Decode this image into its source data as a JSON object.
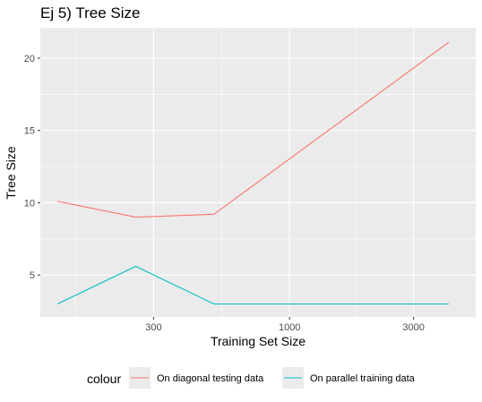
{
  "chart_data": {
    "type": "line",
    "title": "Ej 5) Tree Size",
    "xlabel": "Training Set Size",
    "ylabel": "Tree Size",
    "x_scale": "log10",
    "xlim": [
      110,
      5200
    ],
    "ylim": [
      2.1,
      22.1
    ],
    "x_ticks": [
      300,
      1000,
      3000
    ],
    "x_tick_labels": [
      "300",
      "1000",
      "3000"
    ],
    "x_minor_ticks": [
      150,
      550,
      1800
    ],
    "y_ticks": [
      5,
      10,
      15,
      20
    ],
    "y_tick_labels": [
      "5",
      "10",
      "15",
      "20"
    ],
    "y_minor_ticks": [
      7.5,
      12.5,
      17.5
    ],
    "grid": true,
    "legend": {
      "title": "colour",
      "position": "bottom"
    },
    "x": [
      128,
      256,
      512,
      4096
    ],
    "series": [
      {
        "name": "On diagonal testing data",
        "color": "#F8766D",
        "values": [
          10.1,
          9.0,
          9.2,
          21.1
        ]
      },
      {
        "name": "On parallel training data",
        "color": "#00BFC4",
        "values": [
          3.0,
          5.6,
          3.0,
          3.0
        ]
      }
    ]
  }
}
